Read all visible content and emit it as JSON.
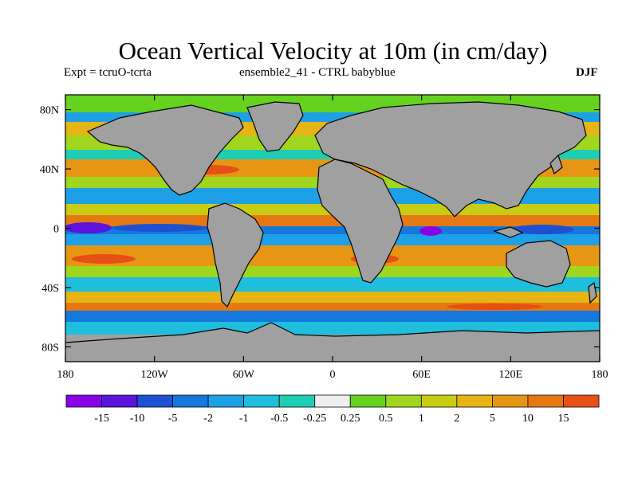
{
  "title": "Ocean Vertical Velocity at 10m (in cm/day)",
  "subtitle_left": "Expt = tcruO-tcrta",
  "subtitle_center": "ensemble2_41 - CTRL babyblue",
  "season": "DJF",
  "map": {
    "lon_range": [
      -180,
      180
    ],
    "lat_range": [
      -90,
      90
    ],
    "lat_ticks": [
      {
        "lat": 80,
        "label": "80N"
      },
      {
        "lat": 40,
        "label": "40N"
      },
      {
        "lat": 0,
        "label": "0"
      },
      {
        "lat": -40,
        "label": "40S"
      },
      {
        "lat": -80,
        "label": "80S"
      }
    ],
    "lon_ticks": [
      {
        "lon": -180,
        "label": "180"
      },
      {
        "lon": -120,
        "label": "120W"
      },
      {
        "lon": -60,
        "label": "60W"
      },
      {
        "lon": 0,
        "label": "0"
      },
      {
        "lon": 60,
        "label": "60E"
      },
      {
        "lon": 120,
        "label": "120E"
      },
      {
        "lon": 180,
        "label": "180"
      }
    ],
    "land_color": "#a0a0a0"
  },
  "colorbar": {
    "colors": [
      "#8a00e6",
      "#5a14dc",
      "#1e50d2",
      "#1478dc",
      "#1ea0e6",
      "#1ebedc",
      "#1ecdb4",
      "#eeeeee",
      "#64d21e",
      "#a0d71e",
      "#c8cd14",
      "#e6b414",
      "#e69614",
      "#e67814",
      "#e65014"
    ],
    "labels": [
      "-15",
      "-10",
      "-5",
      "-2",
      "-1",
      "-0.5",
      "-0.25",
      "0.25",
      "0.5",
      "1",
      "2",
      "5",
      "10",
      "15"
    ]
  }
}
